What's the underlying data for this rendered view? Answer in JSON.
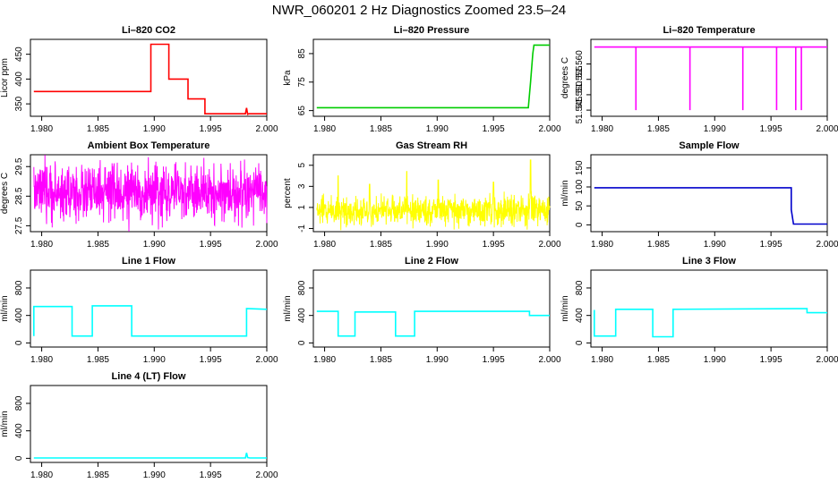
{
  "figure_title": "NWR_060201  2 Hz Diagnostics Zoomed 23.5–24",
  "chart_data": [
    {
      "type": "line",
      "title": "Li–820 CO2",
      "ylabel": "Licor ppm",
      "color": "#ff0000",
      "xlim": [
        1.979,
        2.0
      ],
      "ylim": [
        325,
        480
      ],
      "xticks": [
        "1.980",
        "1.985",
        "1.990",
        "1.995",
        "2.000"
      ],
      "xtick_values": [
        1.98,
        1.985,
        1.99,
        1.995,
        2.0
      ],
      "yticks": [
        "350",
        "400",
        "450"
      ],
      "ytick_values": [
        350,
        400,
        450
      ],
      "series": [
        {
          "x": [
            1.9793,
            1.9897,
            1.9897,
            1.9913,
            1.9913,
            1.993,
            1.993,
            1.9945,
            1.9945,
            1.9981,
            1.9982,
            1.9983,
            1.9984,
            2.0
          ],
          "y": [
            375,
            375,
            470,
            470,
            400,
            400,
            360,
            360,
            330,
            330,
            342,
            329,
            330,
            330
          ]
        }
      ]
    },
    {
      "type": "line",
      "title": "Li–820 Pressure",
      "ylabel": "kPa",
      "color": "#00cc00",
      "xlim": [
        1.979,
        2.0
      ],
      "ylim": [
        63,
        90
      ],
      "xticks": [
        "1.980",
        "1.985",
        "1.990",
        "1.995",
        "2.000"
      ],
      "xtick_values": [
        1.98,
        1.985,
        1.99,
        1.995,
        2.0
      ],
      "yticks": [
        "65",
        "75",
        "85"
      ],
      "ytick_values": [
        65,
        75,
        85
      ],
      "series": [
        {
          "x": [
            1.9793,
            1.9968,
            1.9981,
            1.9983,
            1.9985,
            1.9986,
            2.0
          ],
          "y": [
            66,
            66,
            66,
            75,
            85,
            88,
            88
          ]
        }
      ]
    },
    {
      "type": "line",
      "title": "Li–820 Temperature",
      "ylabel": "degrees C",
      "color": "#ff00ff",
      "xlim": [
        1.979,
        2.0
      ],
      "ylim": [
        51.543,
        51.568
      ],
      "xticks": [
        "1.980",
        "1.985",
        "1.990",
        "1.995",
        "2.000"
      ],
      "xtick_values": [
        1.98,
        1.985,
        1.99,
        1.995,
        2.0
      ],
      "yticks": [
        "51.545",
        "51.550",
        "51.555",
        "51.560"
      ],
      "ytick_values": [
        51.545,
        51.55,
        51.555,
        51.56
      ],
      "baseline": 51.5655,
      "dips_to": 51.545,
      "dips_at": [
        1.983,
        1.9878,
        1.9925,
        1.9955,
        1.9972,
        1.9977
      ],
      "series": [
        {
          "x": [
            1.9793,
            2.0
          ],
          "y": [
            51.5655,
            51.5655
          ]
        }
      ]
    },
    {
      "type": "line",
      "title": "Ambient Box Temperature",
      "ylabel": "degrees C",
      "color": "#ff00ff",
      "xlim": [
        1.979,
        2.0
      ],
      "ylim": [
        27.3,
        29.9
      ],
      "xticks": [
        "1.980",
        "1.985",
        "1.990",
        "1.995",
        "2.000"
      ],
      "xtick_values": [
        1.98,
        1.985,
        1.99,
        1.995,
        2.0
      ],
      "yticks": [
        "27.5",
        "28.5",
        "29.5"
      ],
      "ytick_values": [
        27.5,
        28.5,
        29.5
      ],
      "noise": {
        "x_start": 1.9793,
        "x_end": 2.0,
        "mean": 28.6,
        "spread": 0.95,
        "points": 900
      },
      "series": []
    },
    {
      "type": "line",
      "title": "Gas Stream RH",
      "ylabel": "percent",
      "color": "#ffff00",
      "xlim": [
        1.979,
        2.0
      ],
      "ylim": [
        -1.3,
        6.0
      ],
      "xticks": [
        "1.980",
        "1.985",
        "1.990",
        "1.995",
        "2.000"
      ],
      "xtick_values": [
        1.98,
        1.985,
        1.99,
        1.995,
        2.0
      ],
      "yticks": [
        "-1",
        "1",
        "3",
        "5"
      ],
      "ytick_values": [
        -1,
        1,
        3,
        5
      ],
      "noise": {
        "x_start": 1.9793,
        "x_end": 2.0,
        "mean": 0.7,
        "spread": 1.4,
        "points": 900,
        "spikes": [
          [
            1.9812,
            4.0
          ],
          [
            1.984,
            3.2
          ],
          [
            1.9873,
            4.4
          ],
          [
            1.9901,
            3.6
          ],
          [
            1.995,
            3.4
          ],
          [
            1.9983,
            5.5
          ]
        ]
      },
      "series": []
    },
    {
      "type": "line",
      "title": "Sample Flow",
      "ylabel": "ml/min",
      "color": "#0000cc",
      "xlim": [
        1.979,
        2.0
      ],
      "ylim": [
        -18,
        185
      ],
      "xticks": [
        "1.980",
        "1.985",
        "1.990",
        "1.995",
        "2.000"
      ],
      "xtick_values": [
        1.98,
        1.985,
        1.99,
        1.995,
        2.0
      ],
      "yticks": [
        "0",
        "50",
        "100",
        "150"
      ],
      "ytick_values": [
        0,
        50,
        100,
        150
      ],
      "series": [
        {
          "x": [
            1.9793,
            1.9968,
            1.9968,
            1.997,
            2.0
          ],
          "y": [
            98,
            98,
            40,
            2,
            2
          ]
        }
      ]
    },
    {
      "type": "line",
      "title": "Line 1 Flow",
      "ylabel": "ml/min",
      "color": "#00ffff",
      "xlim": [
        1.979,
        2.0
      ],
      "ylim": [
        -60,
        1060
      ],
      "xticks": [
        "1.980",
        "1.985",
        "1.990",
        "1.995",
        "2.000"
      ],
      "xtick_values": [
        1.98,
        1.985,
        1.99,
        1.995,
        2.0
      ],
      "yticks": [
        "0",
        "400",
        "800"
      ],
      "ytick_values": [
        0,
        400,
        800
      ],
      "series": [
        {
          "x": [
            1.9793,
            1.9793,
            1.9827,
            1.9827,
            1.9845,
            1.9845,
            1.988,
            1.988,
            1.9982,
            1.9982,
            2.0
          ],
          "y": [
            100,
            530,
            530,
            100,
            100,
            540,
            540,
            100,
            100,
            500,
            490
          ]
        }
      ]
    },
    {
      "type": "line",
      "title": "Line 2 Flow",
      "ylabel": "ml/min",
      "color": "#00ffff",
      "xlim": [
        1.979,
        2.0
      ],
      "ylim": [
        -60,
        1060
      ],
      "xticks": [
        "1.980",
        "1.985",
        "1.990",
        "1.995",
        "2.000"
      ],
      "xtick_values": [
        1.98,
        1.985,
        1.99,
        1.995,
        2.0
      ],
      "yticks": [
        "0",
        "400",
        "800"
      ],
      "ytick_values": [
        0,
        400,
        800
      ],
      "series": [
        {
          "x": [
            1.9793,
            1.9812,
            1.9812,
            1.9827,
            1.9827,
            1.9863,
            1.9863,
            1.988,
            1.988,
            1.9982,
            1.9982,
            2.0
          ],
          "y": [
            460,
            460,
            100,
            100,
            450,
            450,
            100,
            100,
            460,
            460,
            400,
            400
          ]
        }
      ]
    },
    {
      "type": "line",
      "title": "Line 3 Flow",
      "ylabel": "ml/min",
      "color": "#00ffff",
      "xlim": [
        1.979,
        2.0
      ],
      "ylim": [
        -60,
        1060
      ],
      "xticks": [
        "1.980",
        "1.985",
        "1.990",
        "1.995",
        "2.000"
      ],
      "xtick_values": [
        1.98,
        1.985,
        1.99,
        1.995,
        2.0
      ],
      "yticks": [
        "0",
        "400",
        "800"
      ],
      "ytick_values": [
        0,
        400,
        800
      ],
      "series": [
        {
          "x": [
            1.9793,
            1.9793,
            1.9796,
            1.9796,
            1.9812,
            1.9812,
            1.9845,
            1.9845,
            1.9863,
            1.9863,
            1.9982,
            1.9982,
            2.0
          ],
          "y": [
            480,
            100,
            100,
            100,
            100,
            490,
            490,
            90,
            90,
            490,
            500,
            440,
            440
          ]
        }
      ]
    },
    {
      "type": "line",
      "title": "Line 4 (LT) Flow",
      "ylabel": "ml/min",
      "color": "#00ffff",
      "xlim": [
        1.979,
        2.0
      ],
      "ylim": [
        -60,
        1060
      ],
      "xticks": [
        "1.980",
        "1.985",
        "1.990",
        "1.995",
        "2.000"
      ],
      "xtick_values": [
        1.98,
        1.985,
        1.99,
        1.995,
        2.0
      ],
      "yticks": [
        "0",
        "400",
        "800"
      ],
      "ytick_values": [
        0,
        400,
        800
      ],
      "series": [
        {
          "x": [
            1.9793,
            1.9981,
            1.9982,
            1.9983,
            1.9985,
            2.0
          ],
          "y": [
            5,
            5,
            80,
            10,
            5,
            5
          ]
        }
      ]
    }
  ]
}
